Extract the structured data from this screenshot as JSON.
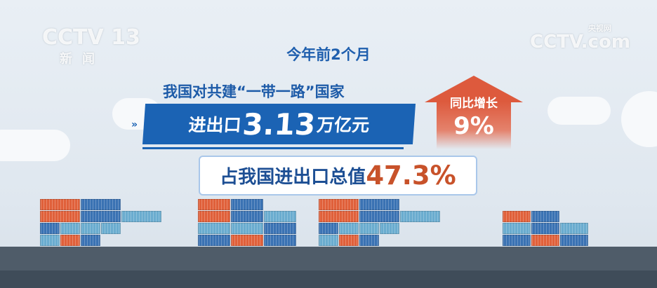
{
  "watermarks": {
    "left_logo": "CCTV 13",
    "left_sub": "新闻",
    "right_logo": "CCTV.com",
    "right_sub": "央视网"
  },
  "headline": {
    "period": "今年前2个月",
    "subject": "我国对共建“一带一路”国家"
  },
  "banner": {
    "prefix": "进出口",
    "value": "3.13",
    "unit": "万亿元"
  },
  "growth": {
    "label": "同比增长",
    "value": "9%"
  },
  "share": {
    "label": "占我国进出口总值",
    "value": "47.3%"
  },
  "colors": {
    "blue": "#1b63b4",
    "red": "#dd5a3d",
    "orange": "#c8522a",
    "water": "#4f5c69"
  }
}
